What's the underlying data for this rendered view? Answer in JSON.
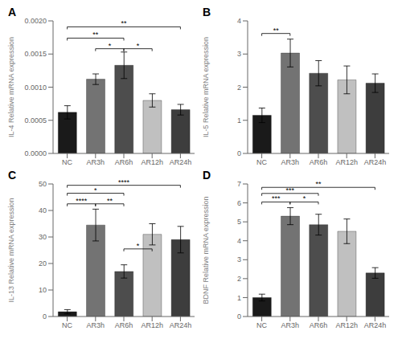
{
  "chart_data": [
    {
      "type": "bar",
      "title": "A",
      "ylabel": "IL-4 Relative mRNA expression",
      "categories": [
        "NC",
        "AR3h",
        "AR6h",
        "AR12h",
        "AR24h"
      ],
      "values": [
        0.00062,
        0.00112,
        0.00133,
        0.0008,
        0.00066
      ],
      "errors": [
        0.0001,
        8e-05,
        0.0002,
        0.0001,
        8e-05
      ],
      "colors": [
        "#1a1a1a",
        "#737373",
        "#4d4d4d",
        "#c0c0c0",
        "#3d3d3d"
      ],
      "ylim": [
        0,
        0.002
      ],
      "yticks": [
        {
          "value": 0,
          "label": "0.0000"
        },
        {
          "value": 0.0005,
          "label": "0.0005"
        },
        {
          "value": 0.001,
          "label": "0.0010"
        },
        {
          "value": 0.0015,
          "label": "0.0015"
        },
        {
          "value": 0.002,
          "label": "0.0020"
        }
      ],
      "annotations": [
        {
          "x1": "AR3h",
          "x2": "AR6h",
          "y": 0.00158,
          "text": "*"
        },
        {
          "x1": "NC",
          "x2": "AR6h",
          "y": 0.00174,
          "text": "**"
        },
        {
          "x1": "AR6h",
          "x2": "AR12h",
          "y": 0.00158,
          "text": "*"
        },
        {
          "x1": "NC",
          "x2": "AR24h",
          "y": 0.00191,
          "text": "**"
        }
      ]
    },
    {
      "type": "bar",
      "title": "B",
      "ylabel": "IL-5 Relative mRNA expression",
      "categories": [
        "NC",
        "AR3h",
        "AR6h",
        "AR12h",
        "AR24h"
      ],
      "values": [
        1.15,
        3.03,
        2.42,
        2.22,
        2.12
      ],
      "errors": [
        0.22,
        0.42,
        0.38,
        0.42,
        0.28
      ],
      "colors": [
        "#1a1a1a",
        "#737373",
        "#4d4d4d",
        "#c0c0c0",
        "#3d3d3d"
      ],
      "ylim": [
        0,
        4
      ],
      "yticks": [
        0,
        1,
        2,
        3,
        4
      ],
      "annotations": [
        {
          "x1": "NC",
          "x2": "AR3h",
          "y": 3.62,
          "text": "**"
        }
      ]
    },
    {
      "type": "bar",
      "title": "C",
      "ylabel": "IL-13 Relative mRNA expression",
      "categories": [
        "NC",
        "AR3h",
        "AR6h",
        "AR12h",
        "AR24h"
      ],
      "values": [
        1.8,
        34.5,
        17.0,
        31.0,
        29.0
      ],
      "errors": [
        0.8,
        6.0,
        2.5,
        4.0,
        5.0
      ],
      "colors": [
        "#1a1a1a",
        "#737373",
        "#4d4d4d",
        "#c0c0c0",
        "#3d3d3d"
      ],
      "ylim": [
        0,
        50
      ],
      "yticks": [
        0,
        10,
        20,
        30,
        40,
        50
      ],
      "annotations": [
        {
          "x1": "NC",
          "x2": "AR3h",
          "y": 42.5,
          "text": "****"
        },
        {
          "x1": "AR3h",
          "x2": "AR6h",
          "y": 42.5,
          "text": "**"
        },
        {
          "x1": "NC",
          "x2": "AR6h",
          "y": 46.5,
          "text": "*"
        },
        {
          "x1": "AR6h",
          "x2": "AR12h",
          "y": 25.5,
          "text": "*"
        },
        {
          "x1": "NC",
          "x2": "AR24h",
          "y": 49.5,
          "text": "****"
        }
      ]
    },
    {
      "type": "bar",
      "title": "D",
      "ylabel": "BDNF Relative mRNA expression",
      "categories": [
        "NC",
        "AR3h",
        "AR6h",
        "AR12h",
        "AR24h"
      ],
      "values": [
        1.0,
        5.3,
        4.85,
        4.5,
        2.3
      ],
      "errors": [
        0.18,
        0.45,
        0.55,
        0.65,
        0.28
      ],
      "colors": [
        "#1a1a1a",
        "#737373",
        "#4d4d4d",
        "#c0c0c0",
        "#3d3d3d"
      ],
      "ylim": [
        0,
        7
      ],
      "yticks": [
        0,
        1,
        2,
        3,
        4,
        5,
        6,
        7
      ],
      "annotations": [
        {
          "x1": "NC",
          "x2": "AR3h",
          "y": 6.05,
          "text": "***"
        },
        {
          "x1": "AR3h",
          "x2": "AR6h",
          "y": 6.05,
          "text": "*"
        },
        {
          "x1": "NC",
          "x2": "AR6h",
          "y": 6.5,
          "text": "***"
        },
        {
          "x1": "NC",
          "x2": "AR24h",
          "y": 6.82,
          "text": "**"
        }
      ]
    }
  ]
}
